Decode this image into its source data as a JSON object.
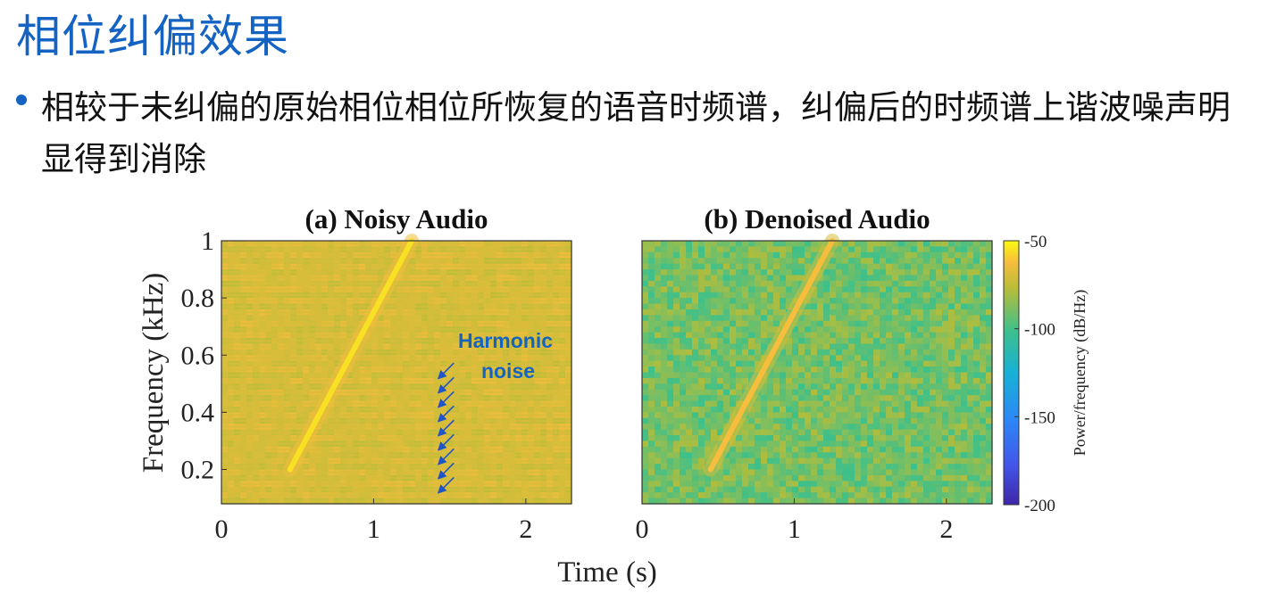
{
  "slide": {
    "title": "相位纠偏效果",
    "bullet": "相较于未纠偏的原始相位相位所恢复的语音时频谱，纠偏后的时频谱上谐波噪声明显得到消除"
  },
  "colors": {
    "title": "#1463c3",
    "annotation": "#1565c0",
    "colormap": "parula"
  },
  "chart_data": [
    {
      "type": "heatmap",
      "title": "(a) Noisy Audio",
      "xlabel": "Time (s)",
      "ylabel": "Frequency (kHz)",
      "xlim": [
        0,
        2.3
      ],
      "ylim": [
        0.08,
        1.0
      ],
      "xticks": [
        0,
        1,
        2
      ],
      "xtick_labels": [
        "0",
        "1",
        "2"
      ],
      "yticks": [
        0.2,
        0.4,
        0.6,
        0.8,
        1.0
      ],
      "ytick_labels": [
        "0.2",
        "0.4",
        "0.6",
        "0.8",
        "1"
      ],
      "background_level_db": -72,
      "harmonic_noise": {
        "present": true,
        "level_db": -70,
        "spacing_khz": 0.02
      },
      "chirp": {
        "start": {
          "t": 0.45,
          "f": 0.2
        },
        "end": {
          "t": 1.25,
          "f": 1.0
        },
        "level_db": -55
      },
      "annotation": {
        "text_lines": [
          "Harmonic",
          "noise"
        ],
        "arrow_tips": [
          {
            "t": 1.41,
            "f": 0.51
          },
          {
            "t": 1.41,
            "f": 0.46
          },
          {
            "t": 1.41,
            "f": 0.41
          },
          {
            "t": 1.41,
            "f": 0.36
          },
          {
            "t": 1.41,
            "f": 0.31
          },
          {
            "t": 1.41,
            "f": 0.26
          },
          {
            "t": 1.41,
            "f": 0.21
          },
          {
            "t": 1.41,
            "f": 0.16
          },
          {
            "t": 1.41,
            "f": 0.11
          }
        ]
      }
    },
    {
      "type": "heatmap",
      "title": "(b) Denoised Audio",
      "xlabel": "Time (s)",
      "xlim": [
        0,
        2.3
      ],
      "ylim": [
        0.08,
        1.0
      ],
      "xticks": [
        0,
        1,
        2
      ],
      "xtick_labels": [
        "0",
        "1",
        "2"
      ],
      "background_level_db": -90,
      "harmonic_noise": {
        "present": false
      },
      "chirp": {
        "start": {
          "t": 0.45,
          "f": 0.2
        },
        "end": {
          "t": 1.25,
          "f": 1.0
        },
        "level_db": -62
      }
    }
  ],
  "colorbar": {
    "label": "Power/frequency (dB/Hz)",
    "min": -200,
    "max": -50,
    "ticks": [
      -50,
      -100,
      -150,
      -200
    ],
    "tick_labels": [
      "-50",
      "-100",
      "-150",
      "-200"
    ]
  },
  "shared_xlabel": "Time (s)"
}
